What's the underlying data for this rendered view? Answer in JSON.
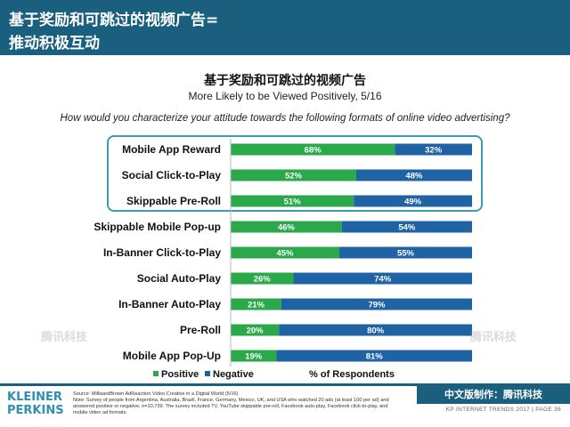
{
  "header": {
    "title_line1": "基于奖励和可跳过的视频广告=",
    "title_line2": "推动积极互动"
  },
  "chart_data": {
    "type": "bar",
    "orientation": "horizontal",
    "stacked": true,
    "title": "基于奖励和可跳过的视频广告",
    "subtitle": "More Likely to be Viewed Positively, 5/16",
    "question": "How would you characterize your attitude towards the following formats of online video advertising?",
    "categories": [
      "Mobile App Reward",
      "Social Click-to-Play",
      "Skippable Pre-Roll",
      "Skippable Mobile Pop-up",
      "In-Banner Click-to-Play",
      "Social Auto-Play",
      "In-Banner Auto-Play",
      "Pre-Roll",
      "Mobile App Pop-Up"
    ],
    "series": [
      {
        "name": "Positive",
        "color": "#2aa84a",
        "values": [
          68,
          52,
          51,
          46,
          45,
          26,
          21,
          20,
          19
        ]
      },
      {
        "name": "Negative",
        "color": "#1f63a5",
        "values": [
          32,
          48,
          49,
          54,
          55,
          74,
          79,
          80,
          81
        ]
      }
    ],
    "xlabel": "% of Respondents",
    "xlim": [
      0,
      100
    ],
    "legend_position": "bottom",
    "highlighted_categories": [
      "Mobile App Reward",
      "Social Click-to-Play",
      "Skippable Pre-Roll"
    ]
  },
  "footer": {
    "logo_line1": "KLEINER",
    "logo_line2": "PERKINS",
    "source": "Source: MillwardBrown AdReaction Video Creative in a Digital World (5/16)",
    "note": "Note: Survey of people from Argentina, Australia, Brazil, France, Germany, Mexico, UK, and USA who watched 20 ads (at least 100 per ad) and answered positive or negative, n=10,739. The survey included TV, YouTube skippable pre-roll, Facebook auto-play, Facebook click-to-play, and mobile video ad formats.",
    "cn_badge": "中文版制作：腾讯科技",
    "right_text": "KP INTERNET TRENDS 2017  |  PAGE 36",
    "watermark": "腾讯科技"
  }
}
